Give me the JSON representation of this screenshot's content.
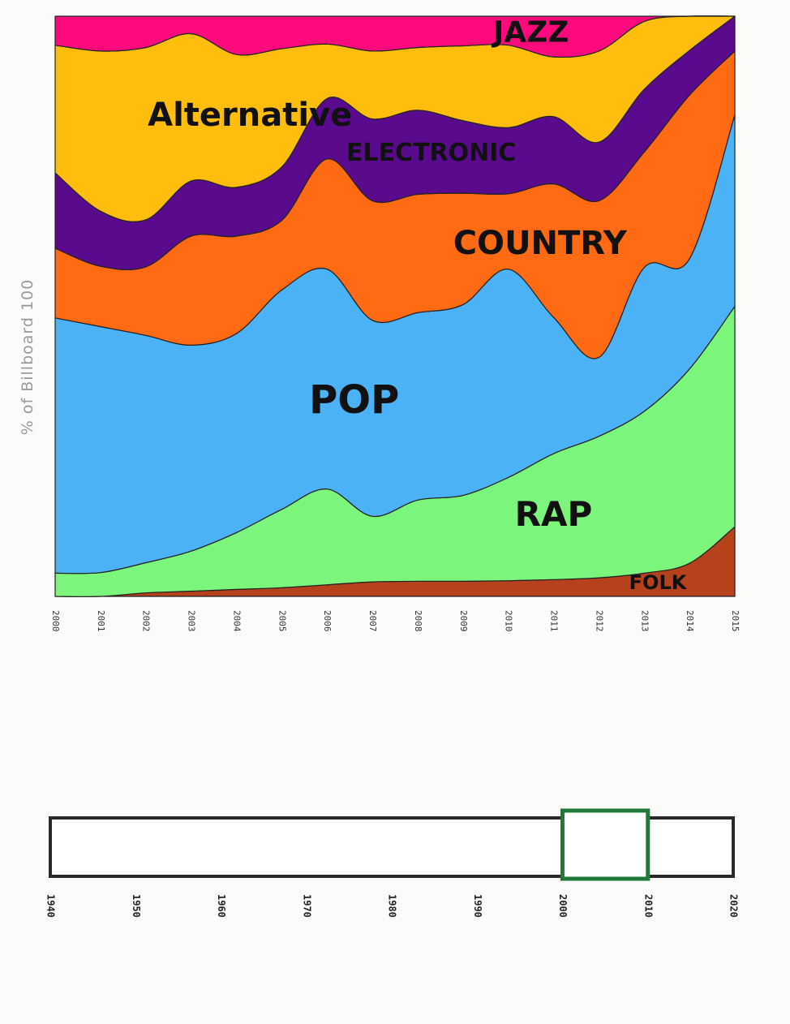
{
  "chart_data": {
    "type": "area",
    "stacked": true,
    "ylabel": "% of Billboard 100",
    "x": [
      2000,
      2001,
      2002,
      2003,
      2004,
      2005,
      2006,
      2007,
      2008,
      2009,
      2010,
      2011,
      2012,
      2013,
      2014,
      2015
    ],
    "x_tick_labels": [
      "2000",
      "2001",
      "2002",
      "2003",
      "2004",
      "2005",
      "2006",
      "2007",
      "2008",
      "2009",
      "2010",
      "2011",
      "2012",
      "2013",
      "2014",
      "2015"
    ],
    "ylim": [
      0,
      100
    ],
    "grid": false,
    "series": [
      {
        "name": "FOLK",
        "color": "#b5421c",
        "values": [
          0,
          0,
          0.6,
          0.9,
          1.2,
          1.5,
          2.0,
          2.5,
          2.6,
          2.6,
          2.7,
          2.9,
          3.2,
          4.0,
          5.7,
          12.0
        ]
      },
      {
        "name": "RAP",
        "color": "#7cf57c",
        "values": [
          4.0,
          4.1,
          5.2,
          6.9,
          9.8,
          13.5,
          16.5,
          11.3,
          14.0,
          14.8,
          17.8,
          21.7,
          24.4,
          27.9,
          33.5,
          38.0
        ]
      },
      {
        "name": "POP",
        "color": "#4cb2f6",
        "values": [
          44.0,
          42.4,
          39.2,
          35.5,
          34.3,
          37.8,
          37.9,
          33.8,
          32.3,
          32.9,
          35.9,
          23.5,
          13.6,
          24.8,
          19.0,
          33.0
        ]
      },
      {
        "name": "COUNTRY",
        "color": "#ff6a13",
        "values": [
          12.0,
          10.4,
          11.8,
          18.8,
          16.8,
          12.0,
          19.0,
          20.6,
          20.4,
          19.2,
          13.0,
          23.0,
          27.0,
          19.9,
          28.2,
          11.0
        ]
      },
      {
        "name": "ELECTRONIC",
        "color": "#5a0a8c",
        "values": [
          13.0,
          9.5,
          8.1,
          9.5,
          8.4,
          9.2,
          10.4,
          14.1,
          14.5,
          12.5,
          11.4,
          11.6,
          10.1,
          10.8,
          7.7,
          6.0
        ]
      },
      {
        "name": "Alternative",
        "color": "#ffbd0d",
        "values": [
          22.0,
          27.6,
          29.7,
          25.4,
          22.9,
          20.4,
          9.4,
          11.7,
          10.8,
          12.9,
          14.2,
          10.3,
          15.7,
          11.7,
          5.9,
          0
        ]
      },
      {
        "name": "JAZZ",
        "color": "#ff0a7c",
        "values": [
          5.0,
          6.0,
          5.4,
          3.0,
          6.6,
          5.6,
          4.8,
          6.0,
          5.4,
          5.1,
          5.0,
          7.0,
          6.0,
          0.9,
          0,
          0
        ]
      }
    ]
  },
  "slider": {
    "ticks": [
      "1940",
      "1950",
      "1960",
      "1970",
      "1980",
      "1990",
      "2000",
      "2010",
      "2020"
    ],
    "range_min": 1940,
    "range_max": 2020,
    "window_start": 2000,
    "window_end": 2010,
    "window_color": "#1f7a3a"
  }
}
